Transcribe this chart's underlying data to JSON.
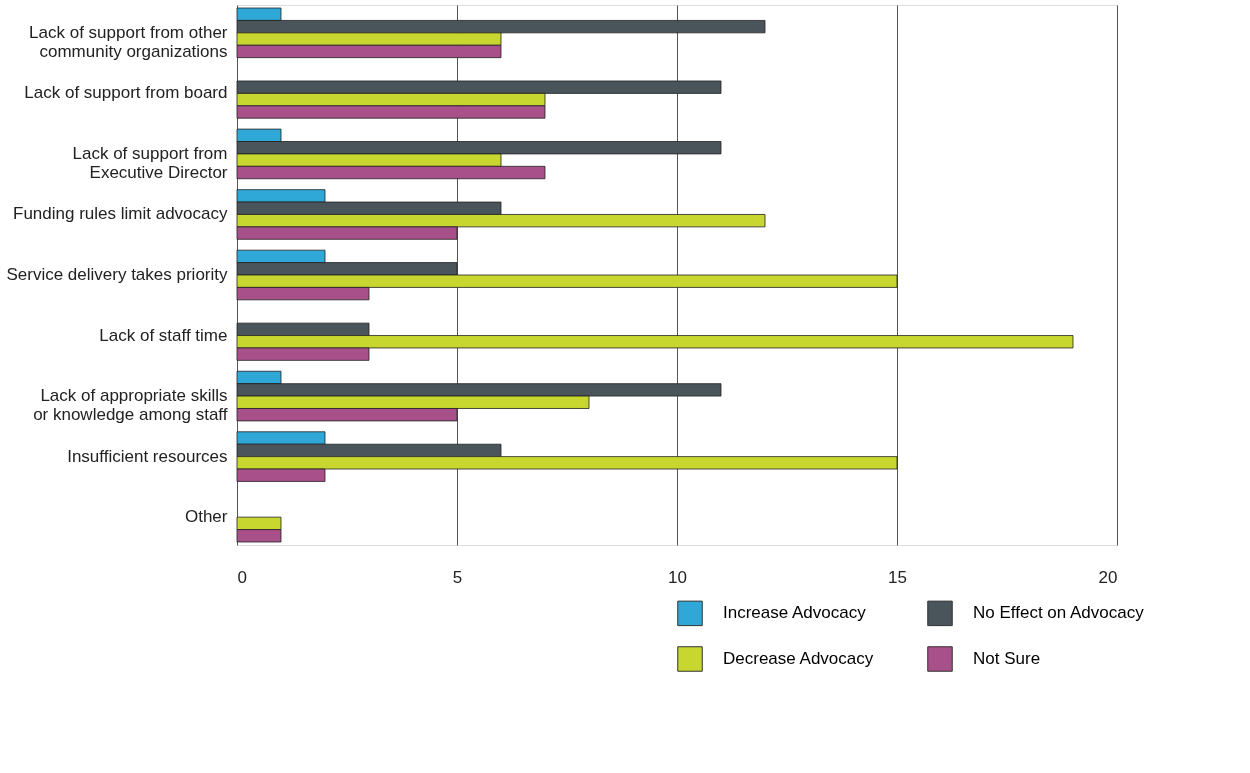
{
  "chart_data": {
    "type": "bar",
    "orientation": "horizontal",
    "categories": [
      "Lack of support from other\ncommunity organizations",
      "Lack of support from board",
      "Lack of support from\nExecutive Director",
      "Funding rules limit advocacy",
      "Service delivery takes priority",
      "Lack of staff time",
      "Lack of appropriate skills\nor knowledge among staff",
      "Insufficient resources",
      "Other"
    ],
    "series": [
      {
        "name": "Increase Advocacy",
        "color": "#2fa8d8",
        "values": [
          1,
          null,
          1,
          2,
          2,
          null,
          1,
          2,
          null
        ]
      },
      {
        "name": "No Effect on Advocacy",
        "color": "#4a545b",
        "values": [
          12,
          11,
          11,
          6,
          5,
          3,
          11,
          6,
          null
        ]
      },
      {
        "name": "Decrease Advocacy",
        "color": "#c8d630",
        "values": [
          6,
          7,
          6,
          12,
          15,
          19,
          8,
          15,
          1
        ]
      },
      {
        "name": "Not Sure",
        "color": "#a8508a",
        "values": [
          6,
          7,
          7,
          5,
          3,
          3,
          5,
          2,
          1
        ]
      }
    ],
    "xlim": [
      0,
      20
    ],
    "xticks": [
      0,
      5,
      10,
      15,
      20
    ],
    "grid": "x",
    "legend": "bottom right"
  }
}
